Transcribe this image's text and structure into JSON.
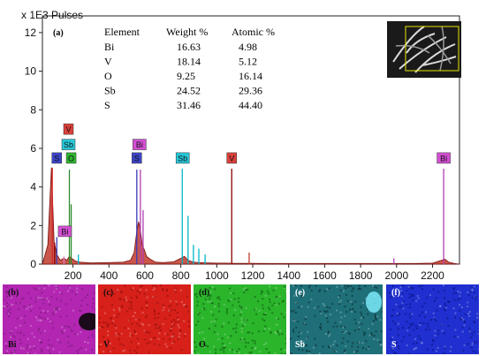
{
  "chart_data": {
    "type": "line",
    "title": "",
    "y_unit_label": "x 1E3 Pulses",
    "panel_label": "(a)",
    "xlabel": "",
    "ylabel": "",
    "xlim": [
      30,
      2350
    ],
    "ylim": [
      0,
      12.5
    ],
    "x_ticks": [
      200,
      400,
      600,
      800,
      1000,
      1200,
      1400,
      1600,
      1800,
      2000,
      2200
    ],
    "y_ticks": [
      0,
      2,
      4,
      6,
      8,
      10,
      12
    ],
    "grid": false,
    "spectrum": {
      "name": "EDX spectrum",
      "color": "#c0392b",
      "x": [
        30,
        60,
        80,
        95,
        110,
        130,
        150,
        165,
        180,
        190,
        200,
        215,
        240,
        300,
        400,
        480,
        520,
        540,
        555,
        565,
        575,
        585,
        595,
        610,
        630,
        660,
        700,
        760,
        800,
        820,
        840,
        870,
        900,
        950,
        1000,
        1050,
        1100,
        1150,
        1200,
        1300,
        1500,
        1700,
        1900,
        2100,
        2200,
        2250,
        2270,
        2290,
        2320,
        2350
      ],
      "y": [
        0.0,
        1.0,
        5.0,
        1.2,
        0.5,
        0.2,
        0.3,
        0.2,
        0.4,
        0.3,
        0.25,
        0.15,
        0.1,
        0.06,
        0.08,
        0.1,
        0.2,
        0.6,
        1.7,
        2.2,
        1.8,
        1.0,
        0.8,
        0.4,
        0.25,
        0.1,
        0.08,
        0.12,
        0.3,
        0.4,
        0.2,
        0.1,
        0.08,
        0.06,
        0.05,
        0.05,
        0.04,
        0.04,
        0.04,
        0.03,
        0.03,
        0.03,
        0.03,
        0.03,
        0.05,
        0.2,
        0.25,
        0.1,
        0.03,
        0.0
      ]
    },
    "peak_lines": [
      {
        "x": 85,
        "y": 5.0,
        "color": "#d62728"
      },
      {
        "x": 98,
        "y": 1.1,
        "color": "#8b0000"
      },
      {
        "x": 110,
        "y": 1.4,
        "color": "#3a3ab8"
      },
      {
        "x": 150,
        "y": 0.4,
        "color": "#e377c2"
      },
      {
        "x": 180,
        "y": 4.9,
        "color": "#2e8b2e"
      },
      {
        "x": 190,
        "y": 3.1,
        "color": "#2e8b2e"
      },
      {
        "x": 230,
        "y": 0.5,
        "color": "#00b7c7"
      },
      {
        "x": 555,
        "y": 4.9,
        "color": "#3a3ab8"
      },
      {
        "x": 575,
        "y": 4.9,
        "color": "#b03fb0"
      },
      {
        "x": 590,
        "y": 2.8,
        "color": "#b03fb0"
      },
      {
        "x": 808,
        "y": 4.95,
        "color": "#00b7c7"
      },
      {
        "x": 840,
        "y": 2.5,
        "color": "#00b7c7"
      },
      {
        "x": 870,
        "y": 1.0,
        "color": "#00b7c7"
      },
      {
        "x": 900,
        "y": 0.8,
        "color": "#00b7c7"
      },
      {
        "x": 935,
        "y": 0.5,
        "color": "#00b7c7"
      },
      {
        "x": 1083,
        "y": 4.95,
        "color": "#8b0000"
      },
      {
        "x": 1180,
        "y": 0.6,
        "color": "#c0392b"
      },
      {
        "x": 1985,
        "y": 0.3,
        "color": "#b03fb0"
      },
      {
        "x": 2262,
        "y": 4.95,
        "color": "#b03fb0"
      }
    ],
    "element_markers": [
      {
        "label": "V",
        "x": 175,
        "y": 7.0,
        "bg": "#d9403a"
      },
      {
        "label": "Sb",
        "x": 175,
        "y": 6.2,
        "bg": "#27c8d8"
      },
      {
        "label": "S",
        "x": 110,
        "y": 5.5,
        "bg": "#3b45c6"
      },
      {
        "label": "O",
        "x": 190,
        "y": 5.5,
        "bg": "#2fb52f"
      },
      {
        "label": "Bi",
        "x": 155,
        "y": 1.7,
        "bg": "#d24fd2"
      },
      {
        "label": "Bi",
        "x": 570,
        "y": 6.2,
        "bg": "#d24fd2"
      },
      {
        "label": "S",
        "x": 555,
        "y": 5.5,
        "bg": "#3b45c6"
      },
      {
        "label": "Sb",
        "x": 810,
        "y": 5.5,
        "bg": "#27c8d8"
      },
      {
        "label": "V",
        "x": 1083,
        "y": 5.5,
        "bg": "#d9403a"
      },
      {
        "label": "Bi",
        "x": 2262,
        "y": 5.5,
        "bg": "#d24fd2"
      }
    ],
    "composition_table": {
      "headers": [
        "Element",
        "Weight %",
        "Atomic %"
      ],
      "rows": [
        [
          "Bi",
          "16.63",
          "4.98"
        ],
        [
          "V",
          "18.14",
          "5.12"
        ],
        [
          "O",
          "9.25",
          "16.14"
        ],
        [
          "Sb",
          "24.52",
          "29.36"
        ],
        [
          "S",
          "31.46",
          "44.40"
        ]
      ]
    }
  },
  "maps": [
    {
      "panel": "(b)",
      "element": "Bi",
      "base": "#b226b2",
      "alt": "#7a1a7a",
      "label_color": "#111111",
      "dark_spot": true
    },
    {
      "panel": "(c)",
      "element": "V",
      "base": "#d8201a",
      "alt": "#8a0f0a",
      "label_color": "#111111",
      "dark_spot": false
    },
    {
      "panel": "(d)",
      "element": "O",
      "base": "#2bb52b",
      "alt": "#0d5a0d",
      "label_color": "#111111",
      "dark_spot": false
    },
    {
      "panel": "(e)",
      "element": "Sb",
      "base": "#1e6f78",
      "alt": "#0b2a30",
      "label_color": "#ffffff",
      "dark_spot": false
    },
    {
      "panel": "(f)",
      "element": "S",
      "base": "#1f2fd0",
      "alt": "#0b127a",
      "label_color": "#ffffff",
      "dark_spot": false
    }
  ]
}
